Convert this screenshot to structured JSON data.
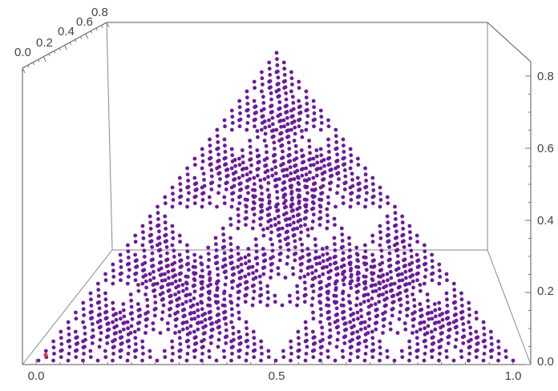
{
  "chart_data": {
    "type": "scatter",
    "subtype": "3d-point-cloud",
    "title": "",
    "description_hidden": true,
    "series": [
      {
        "values": "sierpinski-tetrahedron-like fractal point set (apex ~0.81 height)",
        "color": "#6a1b9a",
        "highlight_point": {
          "x": 0.02,
          "y": 0.0,
          "z": 0.0,
          "color": "#e53935"
        }
      }
    ],
    "x_axis": {
      "range": [
        0.0,
        1.0
      ],
      "ticks": [
        "0.0",
        "0.5",
        "1.0"
      ]
    },
    "y_axis": {
      "range": [
        0.0,
        0.8
      ],
      "ticks": [
        "0.0",
        "0.2",
        "0.4",
        "0.6",
        "0.8"
      ]
    },
    "z_axis": {
      "range": [
        0.0,
        0.8
      ],
      "ticks": [
        "0.0",
        "0.2",
        "0.4",
        "0.6",
        "0.8"
      ]
    },
    "box": true,
    "grid": false
  },
  "labels": {
    "x_ticks": [
      "0.0",
      "0.5",
      "1.0"
    ],
    "y_ticks": [
      "0.0",
      "0.2",
      "0.4",
      "0.6",
      "0.8"
    ],
    "z_ticks": [
      "0.0",
      "0.2",
      "0.4",
      "0.6",
      "0.8"
    ]
  },
  "colors": {
    "point": "#6a1b9a",
    "highlight": "#e53935",
    "box": "#555555"
  }
}
